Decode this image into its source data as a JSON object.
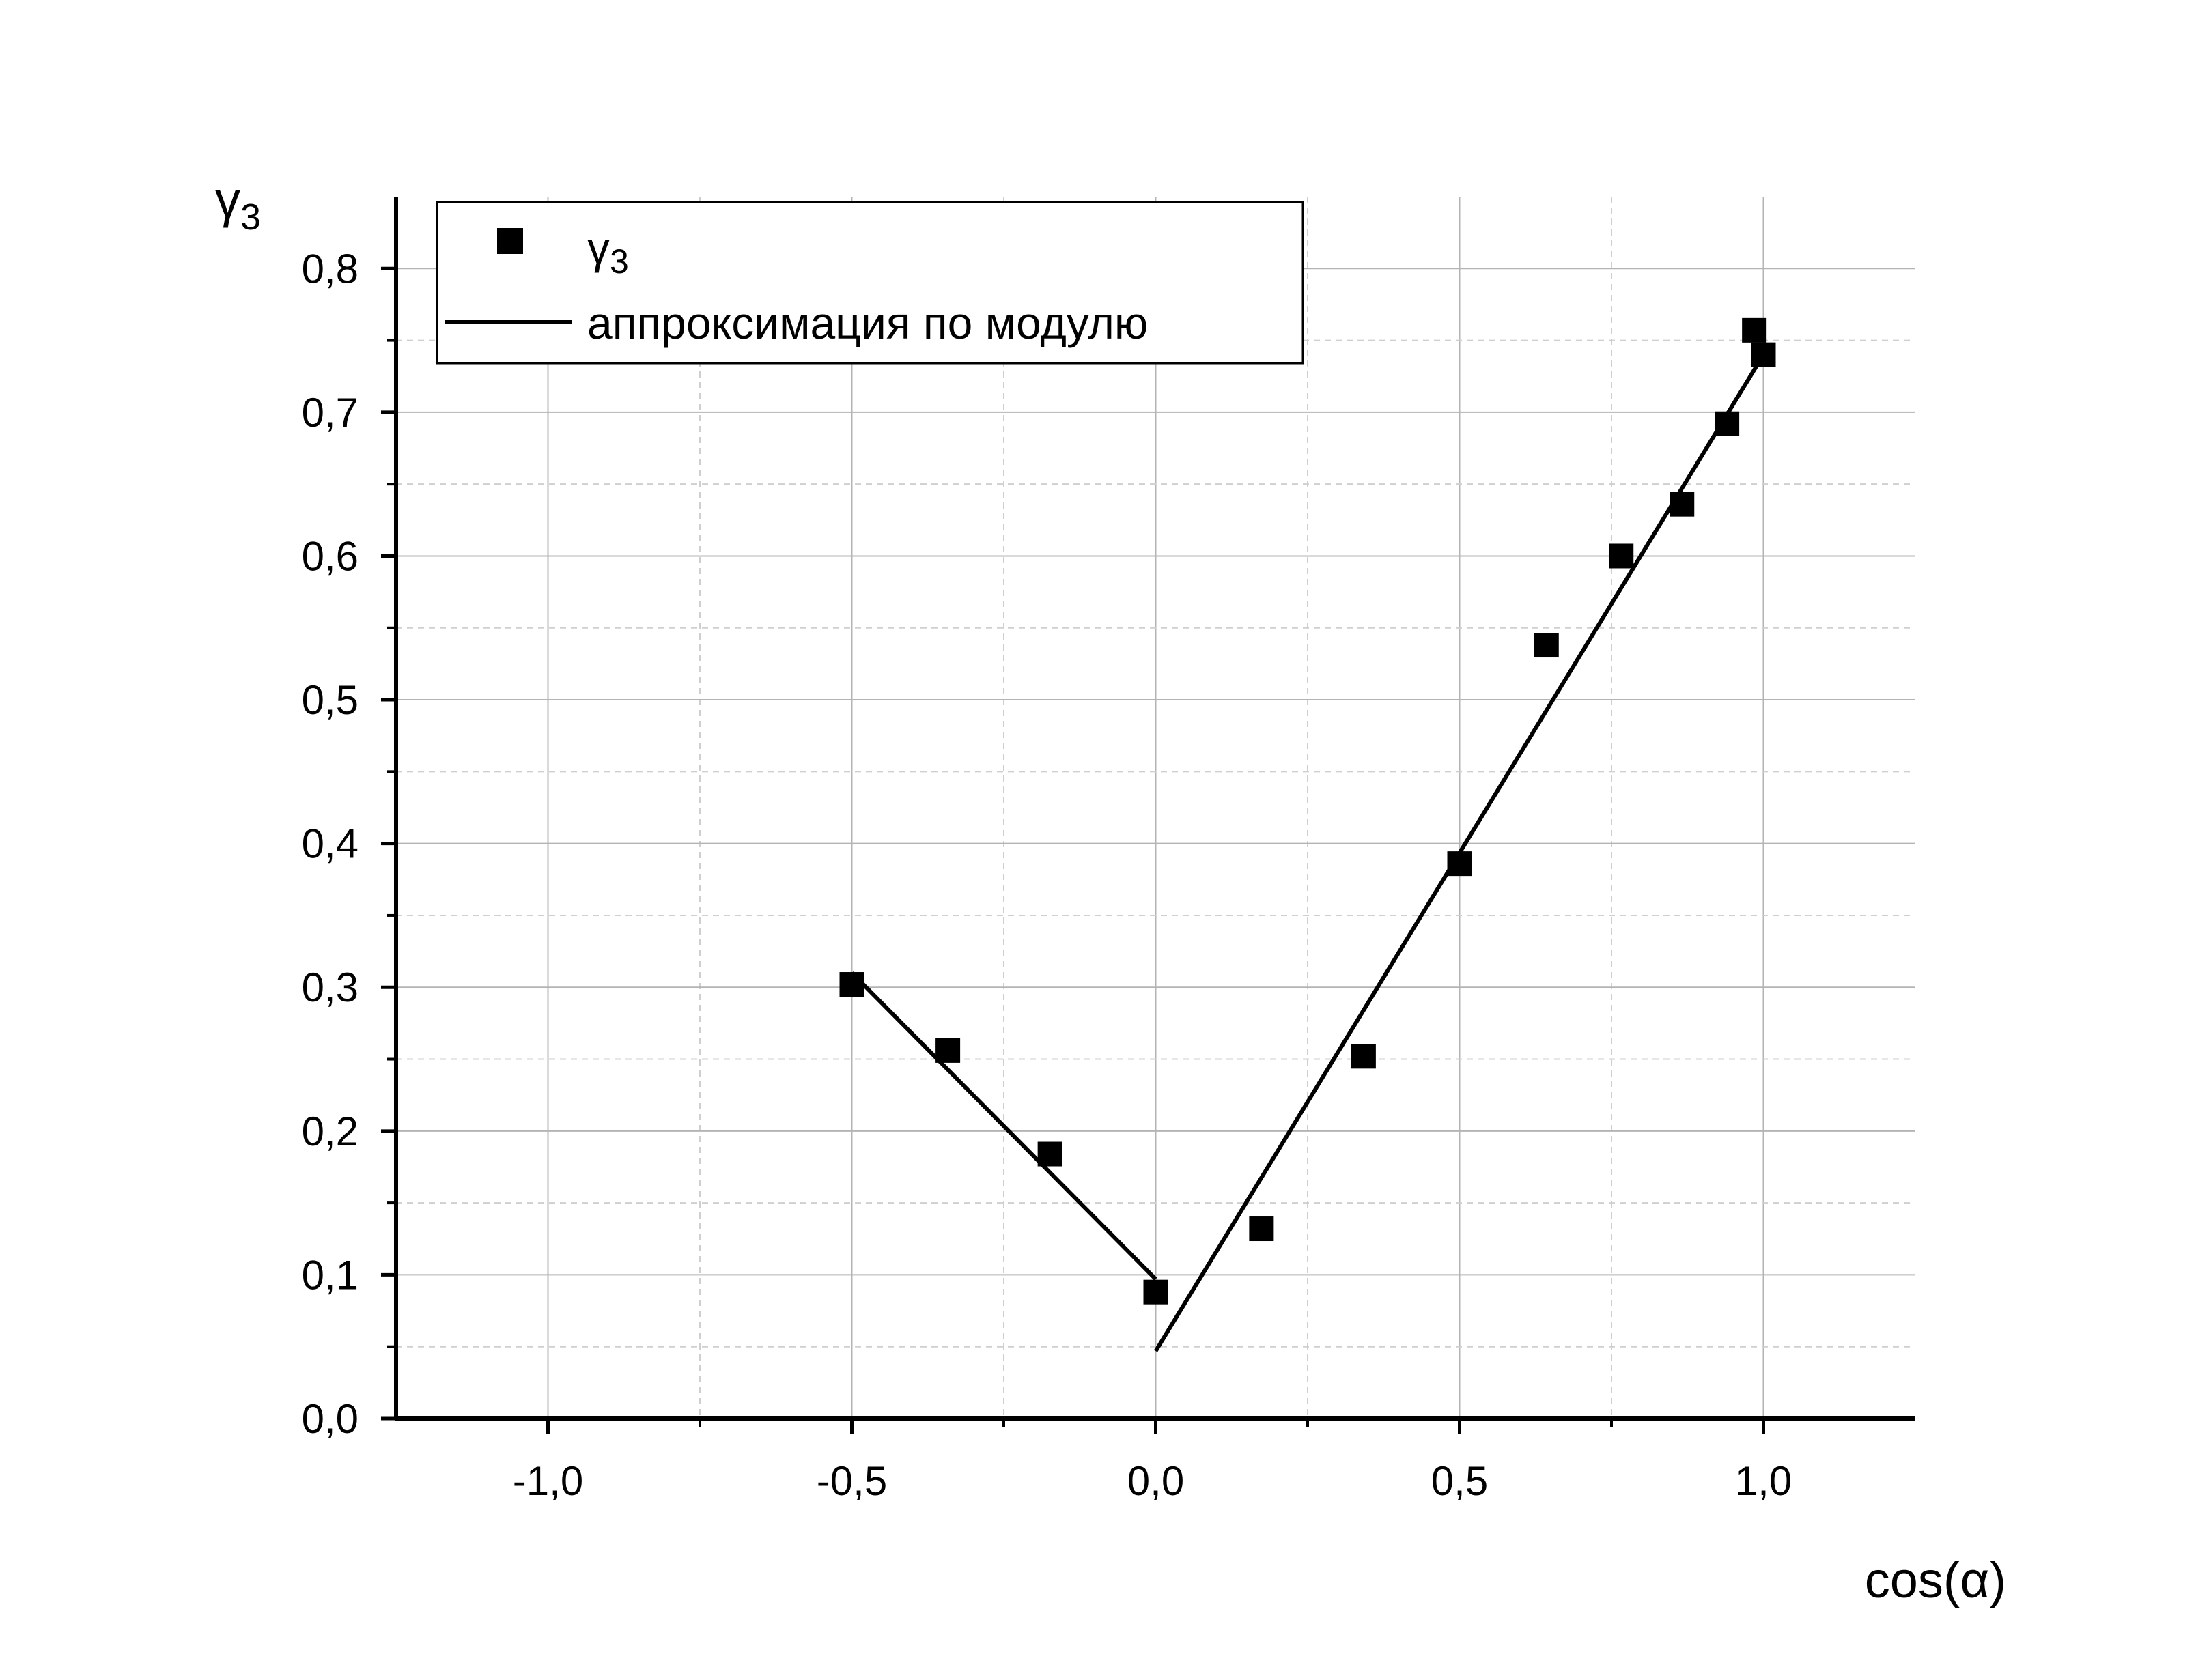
{
  "chart_data": {
    "type": "scatter",
    "xlabel": "cos(α)",
    "ylabel_main": "γ",
    "ylabel_sub": "3",
    "xlim": [
      -1.25,
      1.25
    ],
    "ylim": [
      0.0,
      0.85
    ],
    "x_ticks": [
      -1.0,
      -0.5,
      0.0,
      0.5,
      1.0
    ],
    "x_tick_labels": [
      "-1,0",
      "-0,5",
      "0,0",
      "0,5",
      "1,0"
    ],
    "y_ticks": [
      0.0,
      0.1,
      0.2,
      0.3,
      0.4,
      0.5,
      0.6,
      0.7,
      0.8
    ],
    "y_tick_labels": [
      "0,0",
      "0,1",
      "0,2",
      "0,3",
      "0,4",
      "0,5",
      "0,6",
      "0,7",
      "0,8"
    ],
    "grid": true,
    "legend": "top-left",
    "series": [
      {
        "name_main": "γ",
        "name_sub": "3",
        "kind": "markers",
        "marker": "square",
        "color": "#000000",
        "points": [
          {
            "x": -0.5,
            "y": 0.302
          },
          {
            "x": -0.342,
            "y": 0.256
          },
          {
            "x": -0.174,
            "y": 0.184
          },
          {
            "x": 0.0,
            "y": 0.088
          },
          {
            "x": 0.174,
            "y": 0.132
          },
          {
            "x": 0.342,
            "y": 0.252
          },
          {
            "x": 0.5,
            "y": 0.386
          },
          {
            "x": 0.643,
            "y": 0.538
          },
          {
            "x": 0.766,
            "y": 0.6
          },
          {
            "x": 0.866,
            "y": 0.636
          },
          {
            "x": 0.94,
            "y": 0.692
          },
          {
            "x": 0.985,
            "y": 0.757
          },
          {
            "x": 1.0,
            "y": 0.74
          }
        ]
      },
      {
        "name": "аппроксимация по модулю",
        "kind": "line",
        "color": "#000000",
        "segments": [
          [
            {
              "x": -0.5,
              "y": 0.31
            },
            {
              "x": 0.0,
              "y": 0.097
            }
          ],
          [
            {
              "x": 0.0,
              "y": 0.047
            },
            {
              "x": 1.0,
              "y": 0.74
            }
          ]
        ]
      }
    ]
  }
}
